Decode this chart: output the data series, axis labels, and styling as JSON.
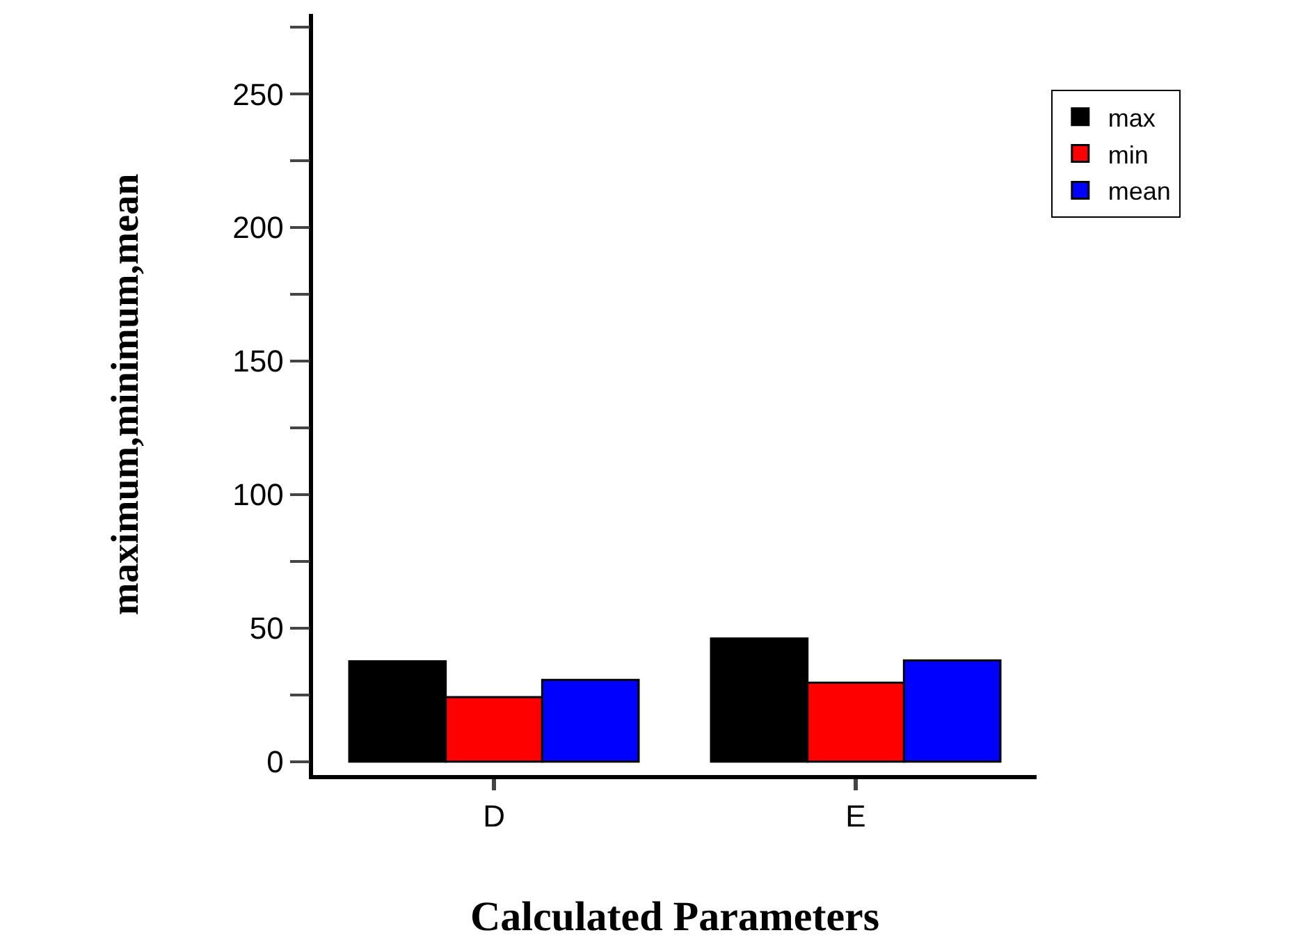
{
  "chart_data": {
    "type": "bar",
    "xlabel": "Calculated Parameters",
    "ylabel": "maximum,minimum,mean",
    "categories": [
      "D",
      "E"
    ],
    "series": [
      {
        "name": "max",
        "color": "#000000",
        "values": [
          37.6,
          46.1
        ]
      },
      {
        "name": "min",
        "color": "#ff0000",
        "values": [
          24.2,
          29.6
        ]
      },
      {
        "name": "mean",
        "color": "#0000ff",
        "values": [
          30.6,
          37.9
        ]
      }
    ],
    "ylim": [
      -5,
      280
    ],
    "yticks": [
      0,
      {
        "value": 25,
        "label": null
      },
      50,
      {
        "value": 75,
        "label": null
      },
      100,
      {
        "value": 125,
        "label": null
      },
      150,
      {
        "value": 175,
        "label": null
      },
      200,
      {
        "value": 225,
        "label": null
      },
      250,
      {
        "value": 275,
        "label": null
      }
    ],
    "grid": false,
    "legend": "top right"
  }
}
